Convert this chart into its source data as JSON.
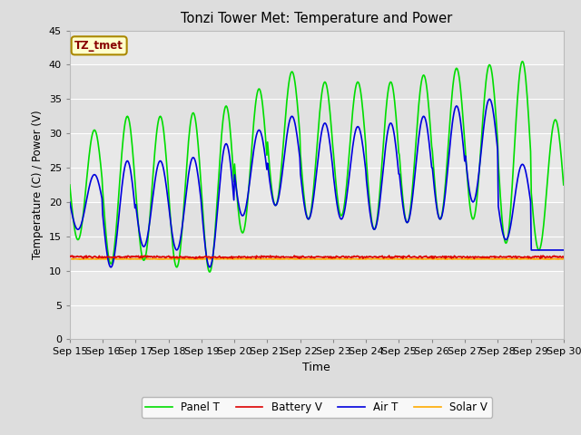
{
  "title": "Tonzi Tower Met: Temperature and Power",
  "xlabel": "Time",
  "ylabel": "Temperature (C) / Power (V)",
  "annotation": "TZ_tmet",
  "ylim": [
    0,
    45
  ],
  "yticks": [
    0,
    5,
    10,
    15,
    20,
    25,
    30,
    35,
    40,
    45
  ],
  "xtick_labels": [
    "Sep 15",
    "Sep 16",
    "Sep 17",
    "Sep 18",
    "Sep 19",
    "Sep 20",
    "Sep 21",
    "Sep 22",
    "Sep 23",
    "Sep 24",
    "Sep 25",
    "Sep 26",
    "Sep 27",
    "Sep 28",
    "Sep 29",
    "Sep 30"
  ],
  "line_colors": {
    "panel_t": "#00DD00",
    "battery_v": "#DD0000",
    "air_t": "#0000DD",
    "solar_v": "#FFAA00"
  },
  "legend_labels": [
    "Panel T",
    "Battery V",
    "Air T",
    "Solar V"
  ],
  "fig_bg_color": "#DDDDDD",
  "plot_bg_color": "#E8E8E8",
  "inner_bg_color": "#DCDCDC",
  "annotation_bg": "#FFFFCC",
  "annotation_fg": "#880000",
  "annotation_edge": "#AA8800",
  "grid_color": "#FFFFFF",
  "panel_t_peaks": [
    30.5,
    32.5,
    32.5,
    33.0,
    34.0,
    36.5,
    39.0,
    37.5,
    37.5,
    37.5,
    38.5,
    39.5,
    40.0,
    40.5,
    32.0
  ],
  "panel_t_troughs": [
    14.5,
    11.0,
    11.5,
    10.5,
    9.8,
    15.5,
    19.5,
    17.5,
    18.0,
    16.0,
    17.0,
    17.5,
    17.5,
    14.0,
    13.0
  ],
  "air_t_peaks": [
    24.0,
    26.0,
    26.0,
    26.5,
    28.5,
    30.5,
    32.5,
    31.5,
    31.0,
    31.5,
    32.5,
    34.0,
    35.0,
    25.5,
    13.0
  ],
  "air_t_troughs": [
    16.0,
    10.5,
    13.5,
    13.0,
    10.5,
    18.0,
    19.5,
    17.5,
    17.5,
    16.0,
    17.0,
    17.5,
    20.0,
    14.5,
    13.0
  ],
  "battery_v_base": 12.0,
  "solar_v_base": 11.7,
  "n_days": 15,
  "pts_per_day": 48
}
